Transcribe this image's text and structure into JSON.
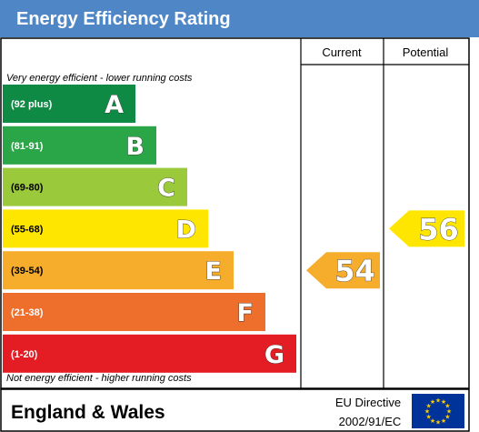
{
  "chart_data": {
    "type": "bar",
    "title": "Energy Efficiency Rating",
    "top_note": "Very energy efficient - lower running costs",
    "bottom_note": "Not energy efficient - higher running costs",
    "column_headers": [
      "Current",
      "Potential"
    ],
    "bands": [
      {
        "letter": "A",
        "range": "(92 plus)",
        "color": "#0f8a45"
      },
      {
        "letter": "B",
        "range": "(81-91)",
        "color": "#2aa648"
      },
      {
        "letter": "C",
        "range": "(69-80)",
        "color": "#9bc93c"
      },
      {
        "letter": "D",
        "range": "(55-68)",
        "color": "#ffe600"
      },
      {
        "letter": "E",
        "range": "(39-54)",
        "color": "#f6ad2c"
      },
      {
        "letter": "F",
        "range": "(21-38)",
        "color": "#ee6e2b"
      },
      {
        "letter": "G",
        "range": "(1-20)",
        "color": "#e31d23"
      }
    ],
    "current": {
      "value": 54,
      "band": "E",
      "color": "#f6ad2c"
    },
    "potential": {
      "value": 56,
      "band": "D",
      "color": "#ffe600"
    }
  },
  "footer": {
    "region": "England & Wales",
    "directive_line1": "EU Directive",
    "directive_line2": "2002/91/EC"
  },
  "colors": {
    "header_bg": "#4f86c6",
    "border": "#000000",
    "eu_flag_bg": "#003399",
    "eu_star": "#ffcc00"
  }
}
